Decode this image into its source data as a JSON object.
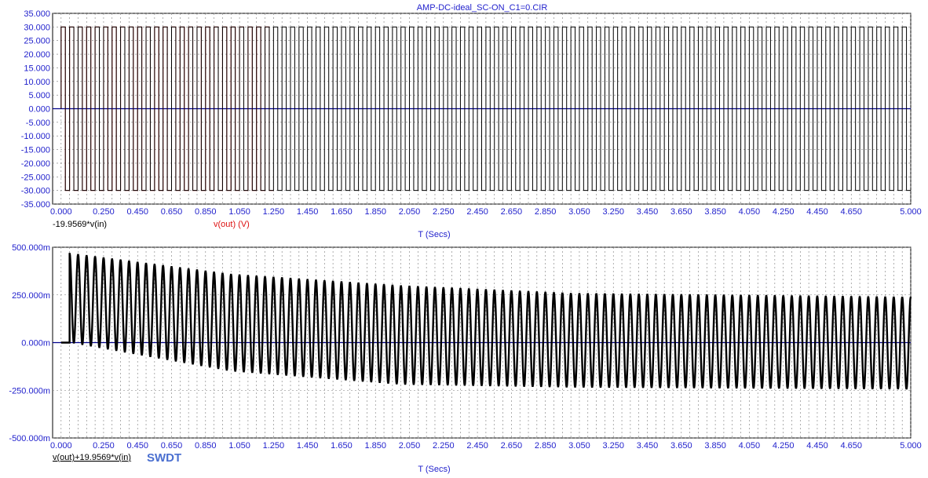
{
  "title": "AMP-DC-ideal_SC-ON_C1=0.CIR",
  "watermark": "SWDT",
  "colors": {
    "axis_text": "#1f1fcc",
    "title_text": "#1f1fcc",
    "trace_black": "#000000",
    "trace_red": "#dd1111",
    "baseline": "#00008b",
    "grid": "#7a7a7a"
  },
  "chart_data": [
    {
      "type": "line",
      "title": "AMP-DC-ideal_SC-ON_C1=0.CIR",
      "xlabel": "T (Secs)",
      "xlim": [
        -0.05,
        5.0
      ],
      "ylim": [
        -35,
        35
      ],
      "grid": true,
      "x_tick_values": [
        0,
        0.25,
        0.45,
        0.65,
        0.85,
        1.05,
        1.25,
        1.45,
        1.65,
        1.85,
        2.05,
        2.25,
        2.45,
        2.65,
        2.85,
        3.05,
        3.25,
        3.45,
        3.65,
        3.85,
        4.05,
        4.25,
        4.45,
        4.65,
        5.0
      ],
      "x_tick_labels": [
        "0.000",
        "0.250",
        "0.450",
        "0.650",
        "0.850",
        "1.050",
        "1.250",
        "1.450",
        "1.650",
        "1.850",
        "2.050",
        "2.250",
        "2.450",
        "2.650",
        "2.850",
        "3.050",
        "3.250",
        "3.450",
        "3.650",
        "3.850",
        "4.050",
        "4.250",
        "4.450",
        "4.650",
        "5.000"
      ],
      "y_tick_values": [
        35,
        30,
        25,
        20,
        15,
        10,
        5,
        0,
        -5,
        -10,
        -15,
        -20,
        -25,
        -30,
        -35
      ],
      "y_tick_labels": [
        "35.000",
        "30.000",
        "25.000",
        "20.000",
        "15.000",
        "10.000",
        "5.000",
        "0.000",
        "-5.000",
        "-10.000",
        "-15.000",
        "-20.000",
        "-25.000",
        "-30.000",
        "-35.000"
      ],
      "series": [
        {
          "name": "-19.9569*v(in)",
          "color": "#000000",
          "waveform": "square",
          "amplitude": 30,
          "frequency_hz": 20,
          "x_start": 0,
          "x_end": 5.0
        },
        {
          "name": "v(out) (V)",
          "color": "#dd1111",
          "waveform": "square",
          "amplitude": 30,
          "frequency_hz": 20,
          "x_start": 0,
          "x_end": 1.25
        }
      ]
    },
    {
      "type": "line",
      "xlabel": "T (Secs)",
      "xlim": [
        -0.05,
        5.0
      ],
      "ylim": [
        -0.5,
        0.5
      ],
      "grid": true,
      "x_tick_values": [
        0,
        0.25,
        0.45,
        0.65,
        0.85,
        1.05,
        1.25,
        1.45,
        1.65,
        1.85,
        2.05,
        2.25,
        2.45,
        2.65,
        2.85,
        3.05,
        3.25,
        3.45,
        3.65,
        3.85,
        4.05,
        4.25,
        4.45,
        4.65,
        5.0
      ],
      "x_tick_labels": [
        "0.000",
        "0.250",
        "0.450",
        "0.650",
        "0.850",
        "1.050",
        "1.250",
        "1.450",
        "1.650",
        "1.850",
        "2.050",
        "2.250",
        "2.450",
        "2.650",
        "2.850",
        "3.050",
        "3.250",
        "3.450",
        "3.650",
        "3.850",
        "4.050",
        "4.250",
        "4.450",
        "4.650",
        "5.000"
      ],
      "y_tick_values": [
        0.5,
        0.25,
        0,
        -0.25,
        -0.5
      ],
      "y_tick_labels": [
        "500.000m",
        "250.000m",
        "0.000m",
        "-250.000m",
        "-500.000m"
      ],
      "series": [
        {
          "name": "v(out)+19.9569*v(in)",
          "color": "#000000",
          "waveform": "oscillation",
          "frequency_hz": 20,
          "x_start": 0.05,
          "x_end": 5.0,
          "envelope_top": [
            [
              0.05,
              0.47
            ],
            [
              1.0,
              0.36
            ],
            [
              2.0,
              0.3
            ],
            [
              3.0,
              0.26
            ],
            [
              5.0,
              0.24
            ]
          ],
          "envelope_bottom": [
            [
              0.05,
              0.0
            ],
            [
              1.0,
              -0.15
            ],
            [
              2.0,
              -0.22
            ],
            [
              3.0,
              -0.235
            ],
            [
              5.0,
              -0.245
            ]
          ]
        }
      ]
    }
  ]
}
